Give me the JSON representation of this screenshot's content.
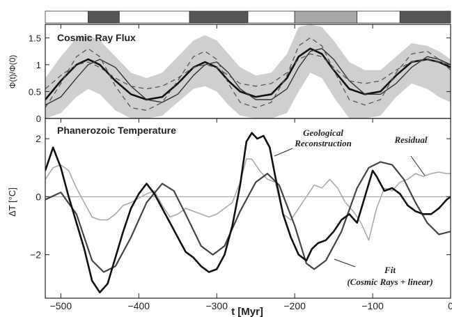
{
  "chart_data": [
    {
      "type": "line",
      "title": "Cosmic Ray Flux",
      "ylabel": "Φ(t)/Φ(0)",
      "xlabel": "",
      "xlim": [
        -520,
        0
      ],
      "ylim": [
        0,
        1.75
      ],
      "yticks": [
        0,
        0.5,
        1,
        1.5
      ],
      "grid": false,
      "band": {
        "x": [
          -520,
          -500,
          -480,
          -465,
          -450,
          -430,
          -410,
          -390,
          -370,
          -350,
          -330,
          -315,
          -300,
          -285,
          -270,
          -250,
          -230,
          -210,
          -195,
          -180,
          -165,
          -150,
          -130,
          -110,
          -90,
          -70,
          -50,
          -30,
          -15,
          0
        ],
        "lower": [
          0.0,
          0.1,
          0.4,
          0.55,
          0.45,
          0.15,
          0.0,
          0.0,
          0.05,
          0.3,
          0.55,
          0.6,
          0.5,
          0.25,
          0.05,
          0.0,
          0.0,
          0.1,
          0.5,
          0.85,
          0.75,
          0.4,
          0.0,
          0.0,
          0.05,
          0.4,
          0.65,
          0.55,
          0.4,
          0.3
        ],
        "upper": [
          0.75,
          1.15,
          1.5,
          1.55,
          1.45,
          1.15,
          0.85,
          0.75,
          0.85,
          1.15,
          1.45,
          1.55,
          1.45,
          1.2,
          0.95,
          0.8,
          0.85,
          1.2,
          1.7,
          1.75,
          1.7,
          1.45,
          1.05,
          0.9,
          0.9,
          1.15,
          1.4,
          1.35,
          1.25,
          1.1
        ]
      },
      "series": [
        {
          "style": "solid-thick",
          "x": [
            -520,
            -500,
            -480,
            -465,
            -450,
            -430,
            -410,
            -390,
            -370,
            -350,
            -330,
            -315,
            -300,
            -285,
            -270,
            -250,
            -230,
            -210,
            -195,
            -180,
            -165,
            -150,
            -130,
            -110,
            -90,
            -70,
            -50,
            -30,
            -15,
            0
          ],
          "values": [
            0.35,
            0.7,
            1.0,
            1.1,
            1.0,
            0.7,
            0.45,
            0.35,
            0.4,
            0.65,
            0.95,
            1.05,
            0.95,
            0.7,
            0.5,
            0.4,
            0.45,
            0.75,
            1.15,
            1.3,
            1.2,
            0.9,
            0.55,
            0.45,
            0.5,
            0.8,
            1.05,
            1.1,
            1.05,
            0.95
          ]
        },
        {
          "style": "solid-thin",
          "x": [
            -520,
            -500,
            -480,
            -465,
            -450,
            -430,
            -410,
            -390,
            -370,
            -350,
            -330,
            -315,
            -300,
            -285,
            -270,
            -250,
            -230,
            -210,
            -195,
            -180,
            -165,
            -150,
            -130,
            -110,
            -90,
            -70,
            -50,
            -30,
            -15,
            0
          ],
          "values": [
            0.25,
            0.4,
            0.75,
            1.0,
            1.1,
            0.95,
            0.6,
            0.35,
            0.3,
            0.45,
            0.8,
            1.0,
            1.05,
            0.85,
            0.55,
            0.35,
            0.35,
            0.55,
            0.95,
            1.25,
            1.3,
            1.1,
            0.7,
            0.45,
            0.45,
            0.65,
            0.95,
            1.15,
            1.1,
            1.0
          ]
        },
        {
          "style": "dashed",
          "x": [
            -520,
            -500,
            -480,
            -465,
            -450,
            -430,
            -410,
            -390,
            -370,
            -350,
            -330,
            -315,
            -300,
            -285,
            -270,
            -250,
            -230,
            -210,
            -195,
            -180,
            -165,
            -150,
            -130,
            -110,
            -90,
            -70,
            -50,
            -30,
            -15,
            0
          ],
          "values": [
            0.2,
            0.65,
            1.15,
            1.3,
            1.15,
            0.6,
            0.2,
            0.15,
            0.3,
            0.7,
            1.15,
            1.25,
            1.1,
            0.65,
            0.3,
            0.2,
            0.3,
            0.8,
            1.35,
            1.5,
            1.35,
            0.9,
            0.35,
            0.25,
            0.35,
            0.85,
            1.2,
            1.25,
            1.1,
            0.9
          ]
        },
        {
          "style": "dashed",
          "x": [
            -520,
            -500,
            -480,
            -465,
            -450,
            -430,
            -410,
            -390,
            -370,
            -350,
            -330,
            -315,
            -300,
            -285,
            -270,
            -250,
            -230,
            -210,
            -195,
            -180,
            -165,
            -150,
            -130,
            -110,
            -90,
            -70,
            -50,
            -30,
            -15,
            0
          ],
          "values": [
            0.55,
            0.8,
            1.0,
            1.05,
            0.95,
            0.75,
            0.6,
            0.55,
            0.6,
            0.75,
            0.95,
            1.0,
            0.95,
            0.8,
            0.65,
            0.6,
            0.65,
            0.85,
            1.1,
            1.2,
            1.15,
            0.95,
            0.7,
            0.65,
            0.7,
            0.9,
            1.05,
            1.1,
            1.05,
            1.0
          ]
        }
      ],
      "top_bar_segments": [
        {
          "x0": -520,
          "x1": -465,
          "fill": "#ffffff"
        },
        {
          "x0": -465,
          "x1": -425,
          "fill": "#555555"
        },
        {
          "x0": -425,
          "x1": -335,
          "fill": "#ffffff"
        },
        {
          "x0": -335,
          "x1": -260,
          "fill": "#555555"
        },
        {
          "x0": -260,
          "x1": -200,
          "fill": "#ffffff"
        },
        {
          "x0": -200,
          "x1": -120,
          "fill": "#a8a8a8"
        },
        {
          "x0": -120,
          "x1": -65,
          "fill": "#ffffff"
        },
        {
          "x0": -65,
          "x1": 0,
          "fill": "#555555"
        }
      ]
    },
    {
      "type": "line",
      "title": "Phanerozoic Temperature",
      "ylabel": "ΔT [°C]",
      "xlabel": "t [Myr]",
      "xlim": [
        -520,
        0
      ],
      "ylim": [
        -3.5,
        2.7
      ],
      "xticks": [
        -500,
        -400,
        -300,
        -200,
        -100,
        0
      ],
      "yticks": [
        -2,
        0,
        2
      ],
      "zero_line": true,
      "grid": false,
      "annotations": {
        "geological": "Geological\nReconstruction",
        "residual": "Residual",
        "fit": "Fit\n(Cosmic Rays + linear)"
      },
      "series": [
        {
          "name": "Geological Reconstruction",
          "style": "solid-thick",
          "x": [
            -520,
            -510,
            -500,
            -490,
            -480,
            -470,
            -460,
            -450,
            -440,
            -430,
            -420,
            -410,
            -400,
            -390,
            -380,
            -370,
            -360,
            -350,
            -340,
            -330,
            -320,
            -310,
            -300,
            -290,
            -280,
            -270,
            -262,
            -255,
            -248,
            -240,
            -232,
            -225,
            -215,
            -205,
            -195,
            -185,
            -178,
            -170,
            -160,
            -150,
            -140,
            -130,
            -120,
            -110,
            -100,
            -95,
            -85,
            -75,
            -65,
            -55,
            -45,
            -35,
            -25,
            -15,
            -5,
            0
          ],
          "values": [
            0.9,
            1.7,
            1.0,
            0.0,
            -0.9,
            -1.8,
            -2.9,
            -3.3,
            -3.0,
            -2.1,
            -1.2,
            -0.4,
            0.1,
            0.45,
            0.1,
            -0.4,
            -0.9,
            -1.4,
            -1.9,
            -2.1,
            -2.4,
            -2.6,
            -2.5,
            -2.0,
            -1.0,
            0.4,
            1.9,
            2.2,
            2.0,
            2.1,
            1.7,
            0.7,
            -0.6,
            -1.4,
            -2.0,
            -2.2,
            -1.8,
            -1.6,
            -1.5,
            -1.2,
            -0.8,
            -0.6,
            -0.9,
            0.0,
            0.9,
            0.7,
            0.2,
            0.3,
            0.1,
            -0.3,
            -0.5,
            -0.6,
            -0.6,
            -0.4,
            -0.1,
            0.0
          ]
        },
        {
          "name": "Fit",
          "style": "solid-medium",
          "x": [
            -520,
            -500,
            -480,
            -460,
            -445,
            -430,
            -410,
            -390,
            -370,
            -355,
            -340,
            -320,
            -305,
            -290,
            -270,
            -250,
            -235,
            -220,
            -200,
            -185,
            -175,
            -160,
            -140,
            -120,
            -105,
            -90,
            -75,
            -60,
            -45,
            -30,
            -15,
            0
          ],
          "values": [
            -0.1,
            0.15,
            -0.6,
            -2.2,
            -2.6,
            -2.4,
            -1.4,
            -0.2,
            0.45,
            0.2,
            -0.6,
            -1.7,
            -2.0,
            -1.7,
            -0.5,
            0.5,
            0.8,
            0.4,
            -1.0,
            -2.3,
            -2.5,
            -2.2,
            -1.2,
            0.3,
            1.0,
            1.2,
            1.1,
            0.6,
            -0.2,
            -0.9,
            -1.3,
            -1.2
          ]
        },
        {
          "name": "Residual",
          "style": "solid-light",
          "x": [
            -520,
            -510,
            -500,
            -490,
            -480,
            -470,
            -460,
            -450,
            -440,
            -430,
            -420,
            -410,
            -400,
            -390,
            -380,
            -370,
            -360,
            -350,
            -340,
            -330,
            -320,
            -310,
            -300,
            -290,
            -280,
            -270,
            -262,
            -255,
            -245,
            -235,
            -225,
            -215,
            -205,
            -195,
            -185,
            -175,
            -165,
            -155,
            -145,
            -135,
            -125,
            -115,
            -105,
            -95,
            -85,
            -75,
            -65,
            -55,
            -45,
            -35,
            -25,
            -15,
            -5,
            0
          ],
          "values": [
            0.6,
            1.0,
            1.1,
            0.9,
            0.3,
            -0.2,
            -0.7,
            -0.8,
            -0.8,
            -0.6,
            -0.3,
            -0.2,
            -0.05,
            0.1,
            0.2,
            -0.3,
            -0.7,
            -0.6,
            -0.4,
            -0.5,
            -0.6,
            -0.7,
            -0.6,
            -0.4,
            -0.2,
            0.5,
            1.3,
            1.3,
            0.9,
            0.6,
            0.5,
            -0.6,
            -0.8,
            -0.4,
            0.0,
            0.4,
            0.3,
            0.6,
            0.3,
            -0.2,
            -0.5,
            -0.9,
            -1.5,
            -0.4,
            0.3,
            0.2,
            0.5,
            0.6,
            0.8,
            0.7,
            0.8,
            0.85,
            0.8,
            0.8
          ]
        }
      ]
    }
  ]
}
